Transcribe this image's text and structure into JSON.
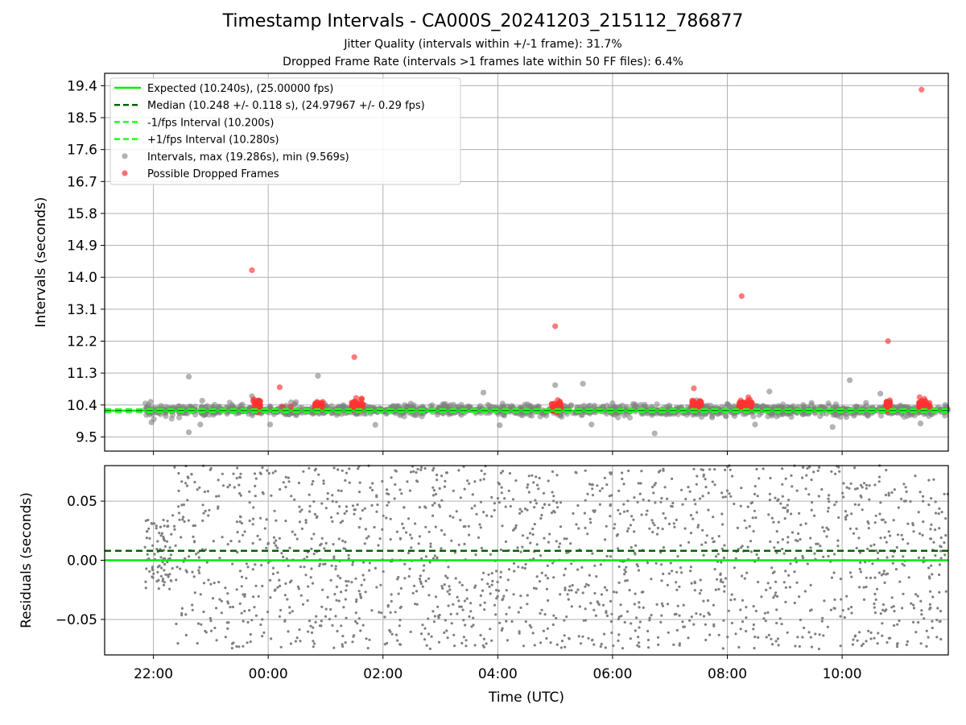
{
  "figure": {
    "title": "Timestamp Intervals - CA000S_20241203_215112_786877",
    "subtitle_1": "Jitter Quality (intervals within +/-1 frame): 31.7%",
    "subtitle_2": "Dropped Frame Rate (intervals >1 frames late within 50 FF files): 6.4%"
  },
  "colors": {
    "expected": "#00ee00",
    "median": "#006400",
    "interval_line": "#22ff22",
    "points": "#808080",
    "dropped": "#ff3333",
    "grid": "#b0b0b0"
  },
  "chart_data": [
    {
      "type": "scatter",
      "ylabel": "Intervals (seconds)",
      "ylim": [
        9.1,
        19.75
      ],
      "x_range_hours": [
        -2.85,
        11.85
      ],
      "yticks": [
        "9.5",
        "10.4",
        "11.3",
        "12.2",
        "13.1",
        "14.0",
        "14.9",
        "15.8",
        "16.7",
        "17.6",
        "18.5",
        "19.4"
      ],
      "grid": true,
      "legend_position": "upper-left",
      "legend": [
        "Expected (10.240s), (25.00000 fps)",
        "Median (10.248 +/- 0.118 s), (24.97967 +/- 0.29 fps)",
        "-1/fps Interval (10.200s)",
        "+1/fps Interval (10.280s)",
        "Intervals, max (19.286s), min (9.569s)",
        "Possible Dropped Frames"
      ],
      "reference_lines": {
        "expected": 10.24,
        "median": 10.248,
        "minus_1_fps": 10.2,
        "plus_1_fps": 10.28
      },
      "interval_band": {
        "center": 10.25,
        "spread": 0.13,
        "x_start": "21:51"
      },
      "outliers": [
        {
          "x": "21:57",
          "y": 10.49
        },
        {
          "x": "21:58",
          "y": 9.91
        },
        {
          "x": "22:37",
          "y": 11.2
        },
        {
          "x": "22:37",
          "y": 9.63
        },
        {
          "x": "22:49",
          "y": 9.85
        },
        {
          "x": "22:51",
          "y": 10.52
        },
        {
          "x": "23:43",
          "y": 10.65
        },
        {
          "x": "00:02",
          "y": 9.85
        },
        {
          "x": "00:29",
          "y": 10.48
        },
        {
          "x": "00:52",
          "y": 11.22
        },
        {
          "x": "01:52",
          "y": 9.84
        },
        {
          "x": "02:29",
          "y": 10.44
        },
        {
          "x": "03:05",
          "y": 10.43
        },
        {
          "x": "03:45",
          "y": 10.75
        },
        {
          "x": "04:02",
          "y": 9.83
        },
        {
          "x": "04:05",
          "y": 10.44
        },
        {
          "x": "04:31",
          "y": 10.42
        },
        {
          "x": "05:00",
          "y": 10.96
        },
        {
          "x": "05:29",
          "y": 11.0
        },
        {
          "x": "05:38",
          "y": 9.85
        },
        {
          "x": "06:00",
          "y": 10.45
        },
        {
          "x": "06:44",
          "y": 9.6
        },
        {
          "x": "07:28",
          "y": 10.53
        },
        {
          "x": "08:00",
          "y": 10.43
        },
        {
          "x": "08:29",
          "y": 9.85
        },
        {
          "x": "08:44",
          "y": 10.78
        },
        {
          "x": "09:28",
          "y": 10.46
        },
        {
          "x": "09:50",
          "y": 9.78
        },
        {
          "x": "10:08",
          "y": 11.1
        },
        {
          "x": "10:25",
          "y": 10.46
        },
        {
          "x": "10:40",
          "y": 10.72
        },
        {
          "x": "11:22",
          "y": 9.88
        },
        {
          "x": "11:30",
          "y": 10.44
        }
      ],
      "dropped_frames_isolated": [
        {
          "x": "23:43",
          "y": 14.2
        },
        {
          "x": "00:12",
          "y": 10.9
        },
        {
          "x": "01:30",
          "y": 11.75
        },
        {
          "x": "05:00",
          "y": 12.62
        },
        {
          "x": "07:25",
          "y": 10.87
        },
        {
          "x": "08:15",
          "y": 13.47
        },
        {
          "x": "10:48",
          "y": 12.2
        },
        {
          "x": "11:23",
          "y": 19.29
        },
        {
          "x": "00:15",
          "y": 10.35
        },
        {
          "x": "00:24",
          "y": 10.35
        },
        {
          "x": "01:32",
          "y": 10.6
        },
        {
          "x": "05:05",
          "y": 10.5
        },
        {
          "x": "08:22",
          "y": 10.62
        },
        {
          "x": "11:21",
          "y": 10.62
        }
      ],
      "dropped_frame_clusters": [
        {
          "x_start": "23:44",
          "x_end": "23:52",
          "y_center": 10.4
        },
        {
          "x_start": "00:49",
          "x_end": "00:57",
          "y_center": 10.35
        },
        {
          "x_start": "01:27",
          "x_end": "01:39",
          "y_center": 10.4
        },
        {
          "x_start": "04:56",
          "x_end": "05:07",
          "y_center": 10.35
        },
        {
          "x_start": "07:23",
          "x_end": "07:33",
          "y_center": 10.4
        },
        {
          "x_start": "08:12",
          "x_end": "08:26",
          "y_center": 10.4
        },
        {
          "x_start": "10:46",
          "x_end": "10:50",
          "y_center": 10.4
        },
        {
          "x_start": "11:20",
          "x_end": "11:32",
          "y_center": 10.4
        }
      ]
    },
    {
      "type": "scatter",
      "ylabel": "Residuals (seconds)",
      "xlabel": "Time (UTC)",
      "ylim": [
        -0.08,
        0.08
      ],
      "yticks": [
        "−0.05",
        "0.00",
        "0.05"
      ],
      "ytick_values": [
        -0.05,
        0.0,
        0.05
      ],
      "xticks": [
        "22:00",
        "00:00",
        "02:00",
        "04:00",
        "06:00",
        "08:00",
        "10:00"
      ],
      "xtick_hours": [
        -2,
        0,
        2,
        4,
        6,
        8,
        10
      ],
      "grid": true,
      "reference_lines": {
        "expected": 0.0,
        "median": 0.008
      },
      "residual_points": {
        "x_start": "21:51",
        "x_end": "11:51",
        "spread": 0.08,
        "initial_spread": 0.03,
        "initial_end": "22:20"
      }
    }
  ]
}
